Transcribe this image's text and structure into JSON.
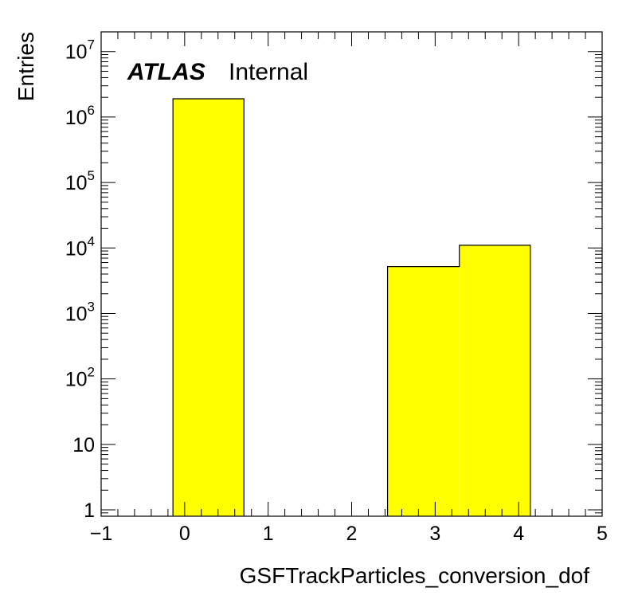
{
  "chart_data": {
    "type": "bar",
    "style": "histogram",
    "xlabel": "GSFTrackParticles_conversion_dof",
    "ylabel": "Entries",
    "label": {
      "experiment": "ATLAS",
      "status": "Internal"
    },
    "xlim": [
      -1,
      5
    ],
    "ylim": [
      0.8,
      20000000
    ],
    "yscale": "log",
    "x_ticks": [
      "−1",
      "0",
      "1",
      "2",
      "3",
      "4",
      "5"
    ],
    "y_ticks": [
      {
        "value": 1,
        "base": "1",
        "exp": ""
      },
      {
        "value": 10,
        "base": "10",
        "exp": ""
      },
      {
        "value": 100,
        "base": "10",
        "exp": "2"
      },
      {
        "value": 1000,
        "base": "10",
        "exp": "3"
      },
      {
        "value": 10000,
        "base": "10",
        "exp": "4"
      },
      {
        "value": 100000,
        "base": "10",
        "exp": "5"
      },
      {
        "value": 1000000,
        "base": "10",
        "exp": "6"
      },
      {
        "value": 10000000,
        "base": "10",
        "exp": "7"
      }
    ],
    "bins": [
      {
        "x_low": -0.14,
        "x_high": 0.71,
        "value": 1900000
      },
      {
        "x_low": 2.43,
        "x_high": 3.29,
        "value": 5200
      },
      {
        "x_low": 3.29,
        "x_high": 4.14,
        "value": 11000
      }
    ],
    "fill_color": "#ffff00",
    "line_color": "#000000",
    "grid": false
  }
}
